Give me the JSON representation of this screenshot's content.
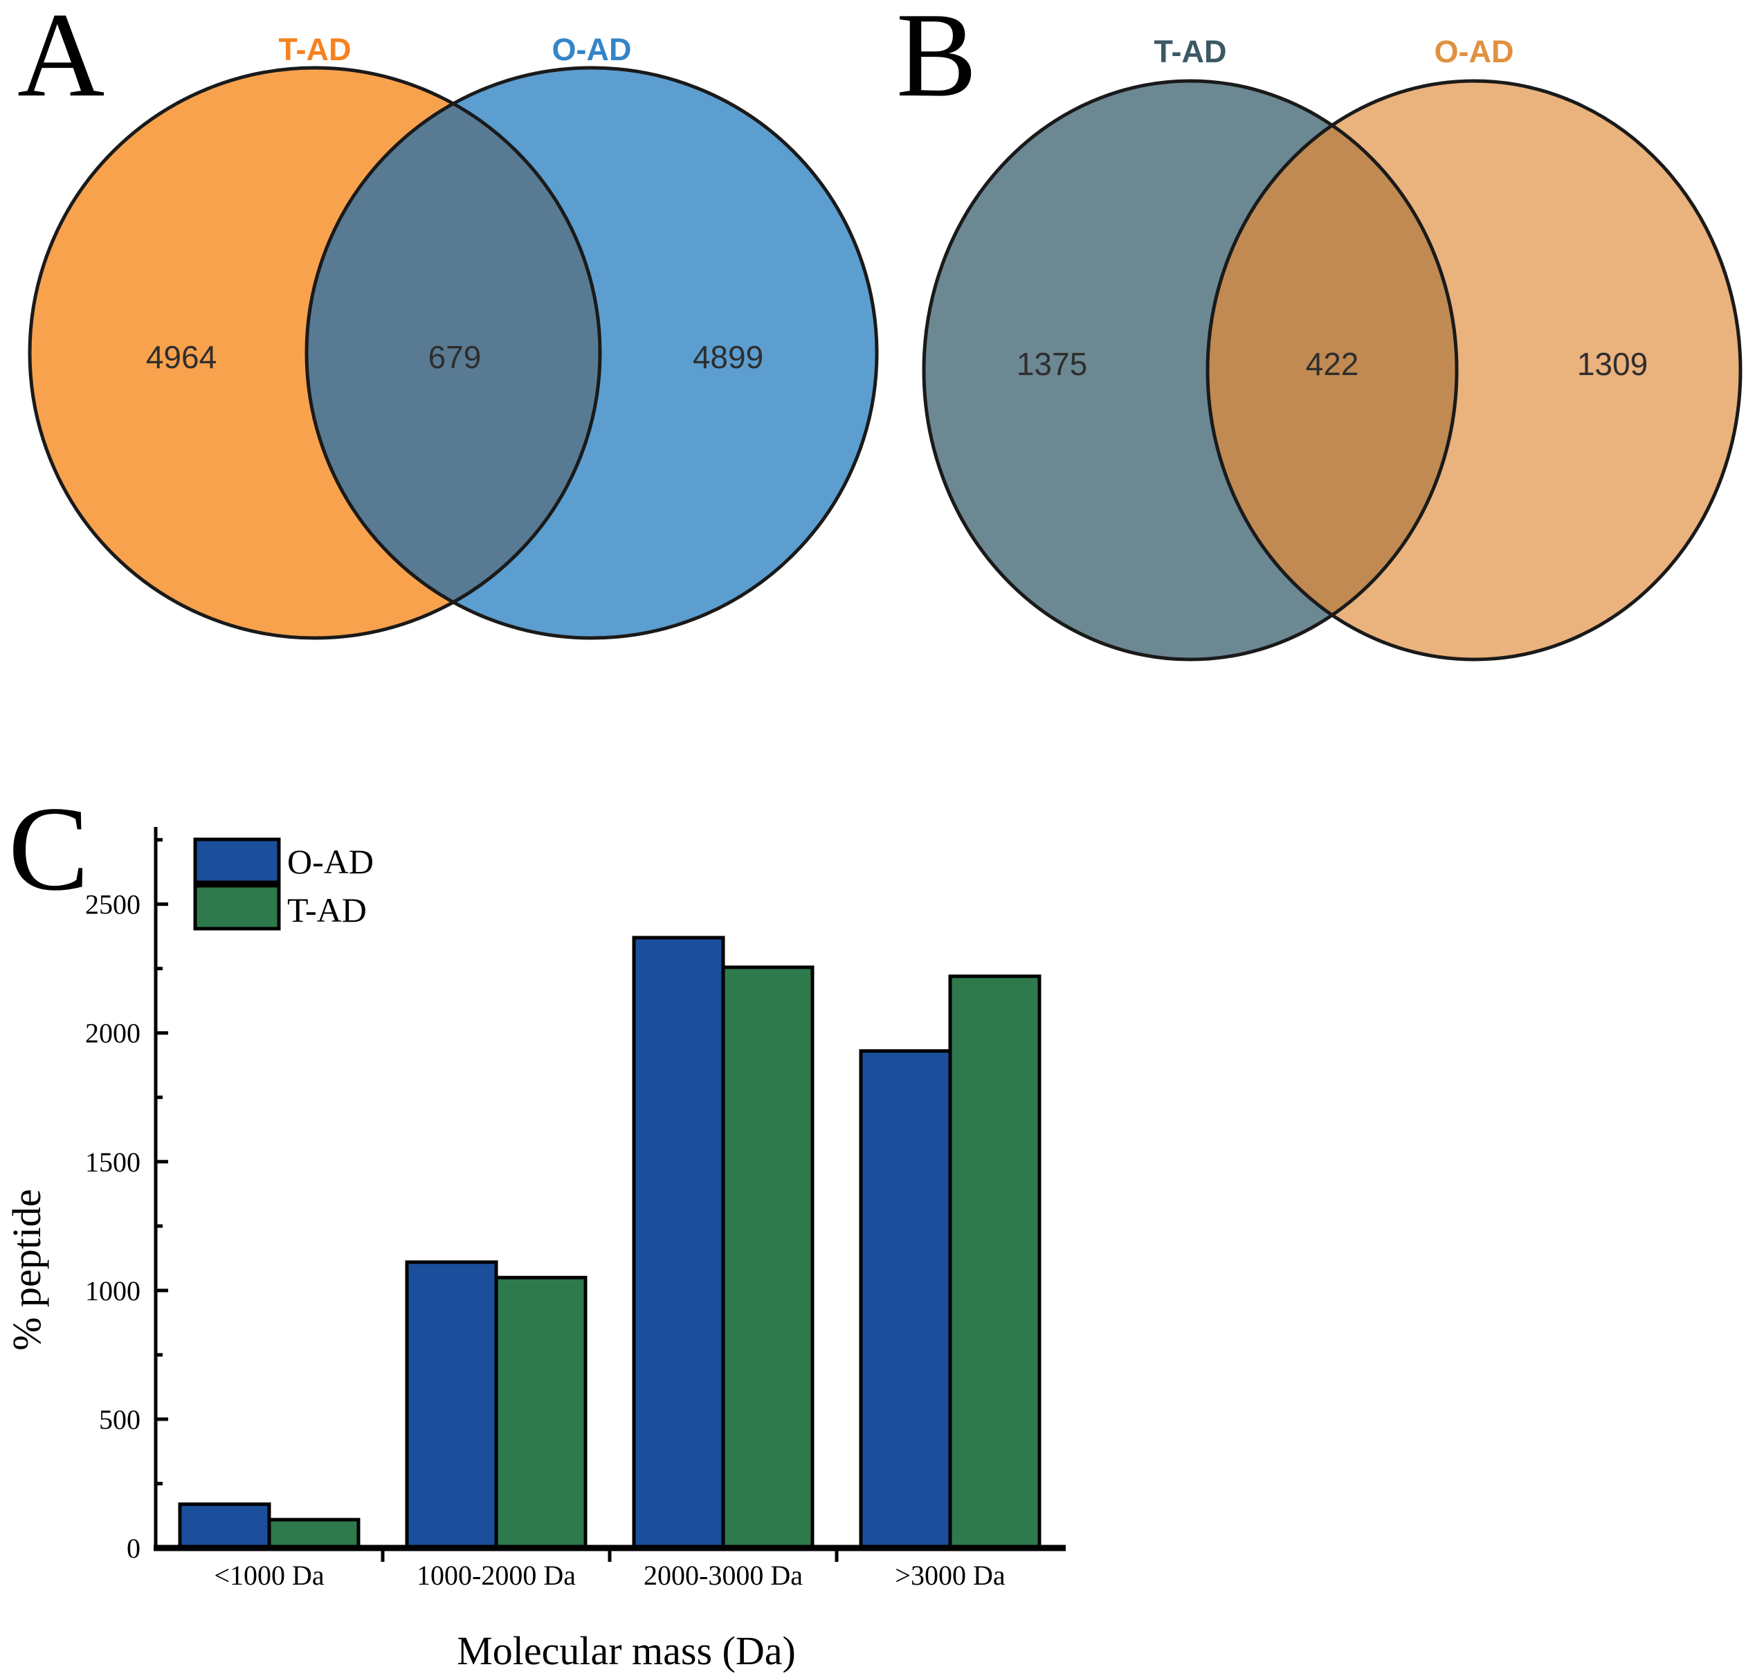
{
  "chart_data": [
    {
      "type": "venn",
      "panel_letter": "A",
      "sets": [
        "T-AD",
        "O-AD"
      ],
      "values": {
        "left_only": "4964",
        "overlap": "679",
        "right_only": "4899"
      },
      "colors": {
        "left_fill": "#F8A24E",
        "right_fill": "#5C9ECF",
        "overlap_fill": "#587B93",
        "left_label": "#F58220",
        "right_label": "#3385C8",
        "outline": "#1A1A1A",
        "value_text": "#2E2E2E"
      }
    },
    {
      "type": "venn",
      "panel_letter": "B",
      "sets": [
        "T-AD",
        "O-AD"
      ],
      "values": {
        "left_only": "1375",
        "overlap": "422",
        "right_only": "1309"
      },
      "colors": {
        "left_fill": "#6C8893",
        "right_fill": "#EAB27D",
        "overlap_fill": "#C08A52",
        "left_label": "#3C5865",
        "right_label": "#E0913F",
        "outline": "#1A1A1A",
        "value_text": "#2E2E2E"
      }
    },
    {
      "type": "bar",
      "panel_letter": "C",
      "title": "",
      "xlabel": "Molecular mass (Da)",
      "ylabel": "% peptide",
      "categories": [
        "<1000 Da",
        "1000-2000 Da",
        "2000-3000 Da",
        ">3000 Da"
      ],
      "series": [
        {
          "name": "O-AD",
          "color": "#1B4F9B",
          "values": [
            170,
            1110,
            2370,
            1930
          ]
        },
        {
          "name": "T-AD",
          "color": "#2E7A4D",
          "values": [
            110,
            1050,
            2255,
            2220
          ]
        }
      ],
      "ylim": [
        0,
        2800
      ],
      "ytick_interval": 500,
      "yminor_interval": 250,
      "legend_position": "top-left",
      "grid": false,
      "axis_color": "#000000",
      "bar_outline": "#000000"
    }
  ]
}
